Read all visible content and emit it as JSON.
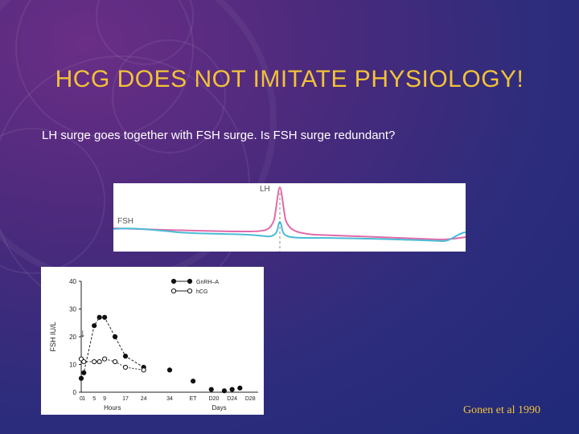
{
  "slide": {
    "title": "HCG DOES NOT IMITATE PHYSIOLOGY!",
    "subtitle": "LH surge goes together with FSH surge. Is FSH surge redundant?",
    "citation": "Gonen et al 1990"
  },
  "colors": {
    "title": "#f2c237",
    "lh_curve": "#e06aa8",
    "fsh_curve": "#4bbcd6"
  },
  "chart_data": [
    {
      "type": "line",
      "series": [
        {
          "name": "LH"
        },
        {
          "name": "FSH"
        }
      ],
      "labels": {
        "lh": "LH",
        "fsh": "FSH"
      }
    },
    {
      "type": "line",
      "ylabel": "FSH  IU/L",
      "ylim": [
        0,
        40
      ],
      "yticks": [
        "0",
        "10",
        "20",
        "30",
        "40"
      ],
      "hours_ticks": [
        "0",
        "1",
        "5",
        "9",
        "17",
        "24",
        "34"
      ],
      "days_ticks": [
        "ET",
        "D20",
        "D24",
        "D28"
      ],
      "xlabel_hours": "Hours",
      "xlabel_days": "Days",
      "series": [
        {
          "name": "GnRH–A",
          "marker": "filled",
          "points": [
            [
              0,
              5
            ],
            [
              1,
              7
            ],
            [
              5,
              24
            ],
            [
              7,
              27
            ],
            [
              9,
              27
            ],
            [
              13,
              20
            ],
            [
              17,
              13
            ],
            [
              24,
              9
            ],
            [
              34,
              8
            ],
            [
              43,
              4
            ],
            [
              50,
              1
            ],
            [
              55,
              0.5
            ],
            [
              58,
              1
            ],
            [
              61,
              1.5
            ]
          ]
        },
        {
          "name": "hCG",
          "marker": "open",
          "points": [
            [
              0,
              12
            ],
            [
              1,
              11
            ],
            [
              5,
              11
            ],
            [
              7,
              11
            ],
            [
              9,
              12
            ],
            [
              13,
              11
            ],
            [
              17,
              9
            ],
            [
              24,
              8
            ]
          ]
        }
      ],
      "arrow_annotation": "↓"
    }
  ]
}
